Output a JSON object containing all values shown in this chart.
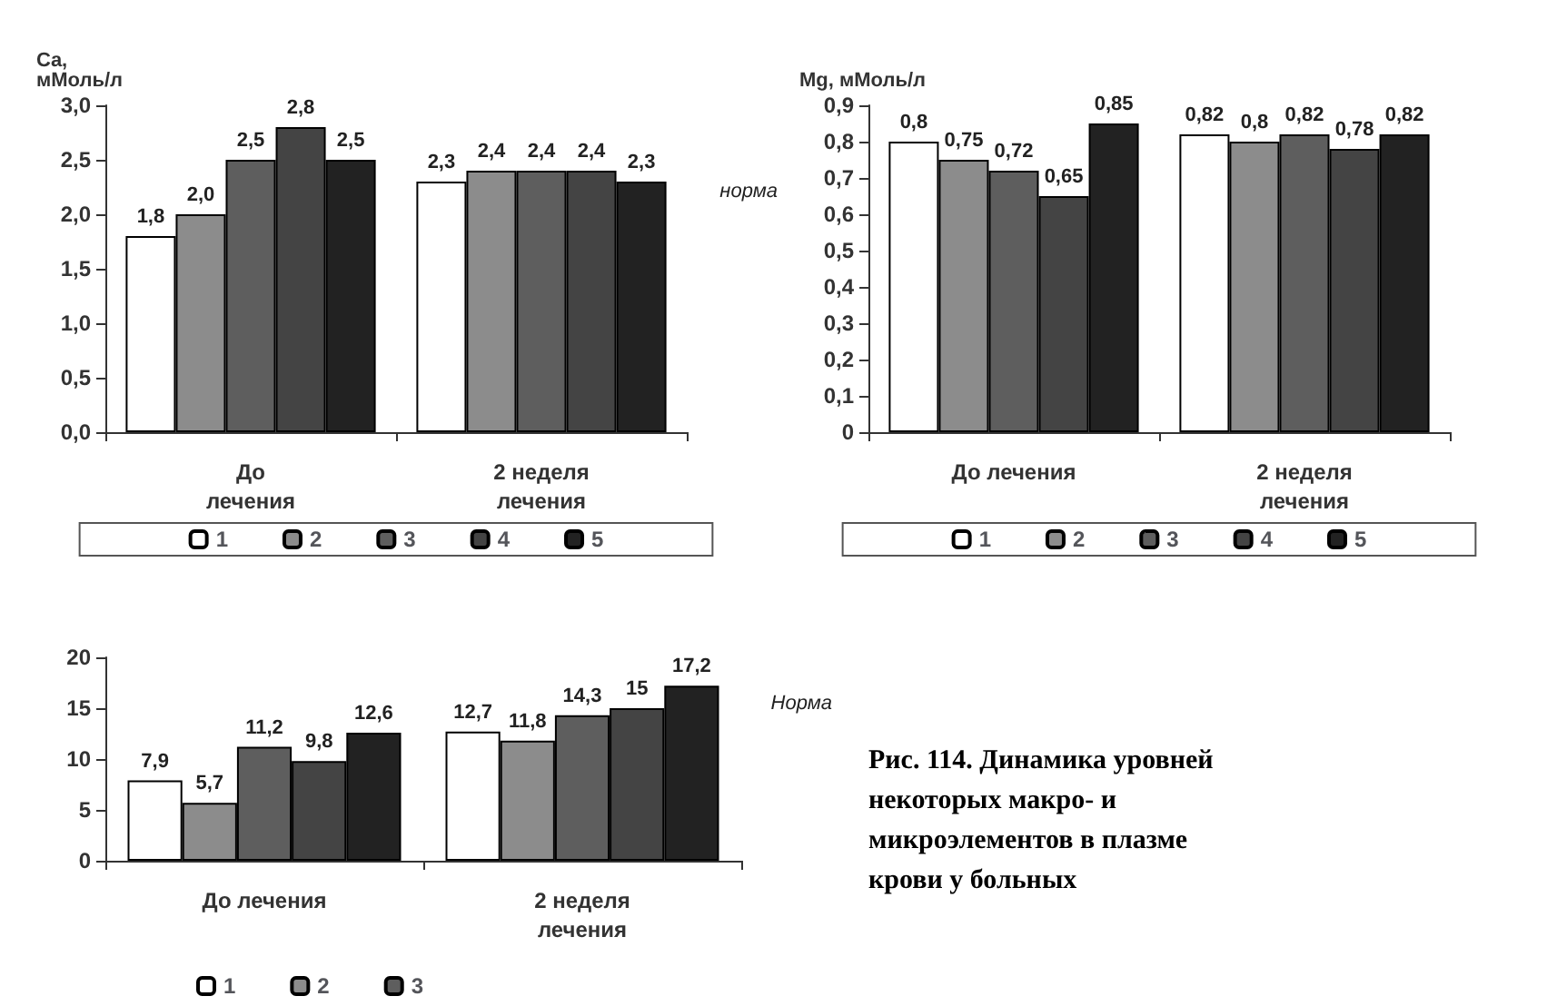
{
  "chart_data": [
    {
      "type": "bar",
      "ylabel": "Ca,\nмМоль/л",
      "categories": [
        "До\nлечения",
        "2 неделя\nлечения"
      ],
      "series": [
        {
          "name": "1",
          "color": "#ffffff",
          "values": [
            1.8,
            2.3
          ],
          "value_labels": [
            "1,8",
            "2,3"
          ]
        },
        {
          "name": "2",
          "color": "#8c8c8c",
          "values": [
            2.0,
            2.4
          ],
          "value_labels": [
            "2,0",
            "2,4"
          ]
        },
        {
          "name": "3",
          "color": "#5e5e5e",
          "values": [
            2.5,
            2.4
          ],
          "value_labels": [
            "2,5",
            "2,4"
          ]
        },
        {
          "name": "4",
          "color": "#444444",
          "values": [
            2.8,
            2.4
          ],
          "value_labels": [
            "2,8",
            "2,4"
          ]
        },
        {
          "name": "5",
          "color": "#222222",
          "values": [
            2.5,
            2.3
          ],
          "value_labels": [
            "2,5",
            "2,3"
          ]
        }
      ],
      "ylim": [
        0,
        3
      ],
      "yticks": [
        {
          "value": 0,
          "label": "0,0"
        },
        {
          "value": 0.5,
          "label": "0,5"
        },
        {
          "value": 1,
          "label": "1,0"
        },
        {
          "value": 1.5,
          "label": "1,5"
        },
        {
          "value": 2,
          "label": "2,0"
        },
        {
          "value": 2.5,
          "label": "2,5"
        },
        {
          "value": 3,
          "label": "3,0"
        }
      ],
      "annotations": [
        "норма"
      ],
      "legend": "bottom",
      "grid": false
    },
    {
      "type": "bar",
      "ylabel": "Mg, мМоль/л",
      "categories": [
        "До лечения",
        "2 неделя\nлечения"
      ],
      "series": [
        {
          "name": "1",
          "color": "#ffffff",
          "values": [
            0.8,
            0.82
          ],
          "value_labels": [
            "0,8",
            "0,82"
          ]
        },
        {
          "name": "2",
          "color": "#8c8c8c",
          "values": [
            0.75,
            0.8
          ],
          "value_labels": [
            "0,75",
            "0,8"
          ]
        },
        {
          "name": "3",
          "color": "#5e5e5e",
          "values": [
            0.72,
            0.82
          ],
          "value_labels": [
            "0,72",
            "0,82"
          ]
        },
        {
          "name": "4",
          "color": "#444444",
          "values": [
            0.65,
            0.78
          ],
          "value_labels": [
            "0,65",
            "0,78"
          ]
        },
        {
          "name": "5",
          "color": "#222222",
          "values": [
            0.85,
            0.82
          ],
          "value_labels": [
            "0,85",
            "0,82"
          ]
        }
      ],
      "ylim": [
        0,
        0.9
      ],
      "yticks": [
        0,
        {
          "value": 0.1,
          "label": "0,1"
        },
        {
          "value": 0.2,
          "label": "0,2"
        },
        {
          "value": 0.3,
          "label": "0,3"
        },
        {
          "value": 0.4,
          "label": "0,4"
        },
        {
          "value": 0.5,
          "label": "0,5"
        },
        {
          "value": 0.6,
          "label": "0,6"
        },
        {
          "value": 0.7,
          "label": "0,7"
        },
        {
          "value": 0.8,
          "label": "0,8"
        },
        {
          "value": 0.9,
          "label": "0,9"
        }
      ],
      "legend": "bottom",
      "grid": false
    },
    {
      "type": "bar",
      "categories": [
        "До лечения",
        "2 неделя\nлечения"
      ],
      "series": [
        {
          "name": "1",
          "color": "#ffffff",
          "values": [
            7.9,
            12.7
          ],
          "value_labels": [
            "7,9",
            "12,7"
          ]
        },
        {
          "name": "2",
          "color": "#8c8c8c",
          "values": [
            5.7,
            11.8
          ],
          "value_labels": [
            "5,7",
            "11,8"
          ]
        },
        {
          "name": "3",
          "color": "#5e5e5e",
          "values": [
            11.2,
            14.3
          ],
          "value_labels": [
            "11,2",
            "14,3"
          ]
        },
        {
          "color": "#444444",
          "values": [
            9.8,
            15
          ],
          "value_labels": [
            "9,8",
            "15"
          ]
        },
        {
          "color": "#222222",
          "values": [
            12.6,
            17.2
          ],
          "value_labels": [
            "12,6",
            "17,2"
          ]
        }
      ],
      "ylim": [
        0,
        20
      ],
      "yticks": [
        0,
        5,
        10,
        15,
        20
      ],
      "annotations": [
        "Норма",
        "Рис. 114. Динамика уровней некоторых макро- и микроэлементов в плазме крови у больных"
      ],
      "legend": "bottom left",
      "grid": false
    }
  ]
}
